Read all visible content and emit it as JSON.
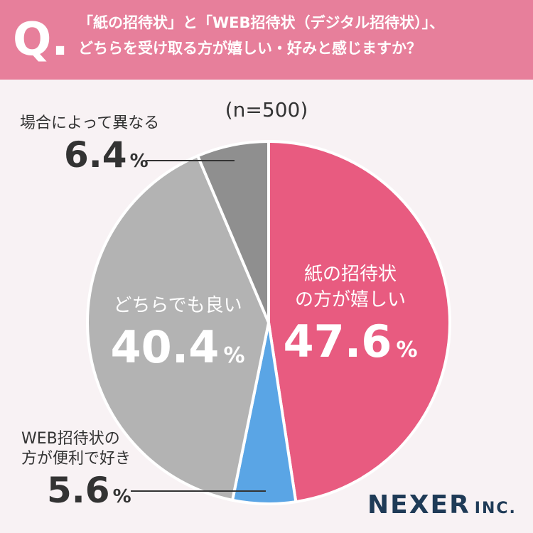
{
  "question": {
    "mark": "Q.",
    "line1": "「紙の招待状」と「WEB招待状（デジタル招待状）」、",
    "line2": "どちらを受け取る方が嬉しい・好みと感じますか？"
  },
  "sample_label": "(n=500)",
  "brand": {
    "name": "NEXER",
    "suffix": "INC."
  },
  "colors": {
    "banner": "#e77f9b",
    "paper": "#e85b80",
    "web": "#5aa5e5",
    "either": "#b3b3b3",
    "depends": "#8f8f8f",
    "background": "#f8f2f4"
  },
  "chart_data": {
    "type": "pie",
    "sample_size": "n=500",
    "series": [
      {
        "label_lines": [
          "紙の招待状",
          "の方が嬉しい"
        ],
        "value": 47.6,
        "value_text": "47.6",
        "unit": "%",
        "color": "#e85b80"
      },
      {
        "label_lines": [
          "WEB招待状の",
          "方が便利で好き"
        ],
        "value": 5.6,
        "value_text": "5.6",
        "unit": "%",
        "color": "#5aa5e5"
      },
      {
        "label_lines": [
          "どちらでも良い"
        ],
        "value": 40.4,
        "value_text": "40.4",
        "unit": "%",
        "color": "#b3b3b3"
      },
      {
        "label_lines": [
          "場合によって異なる"
        ],
        "value": 6.4,
        "value_text": "6.4",
        "unit": "%",
        "color": "#8f8f8f"
      }
    ]
  }
}
